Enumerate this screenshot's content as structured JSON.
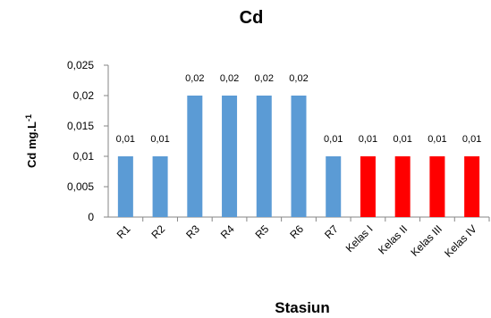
{
  "chart_data": {
    "type": "bar",
    "title": "Cd",
    "y_label": "Cd mg.L",
    "y_label_superscript": "-1",
    "x_label": "Stasiun",
    "categories": [
      "R1",
      "R2",
      "R3",
      "R4",
      "R5",
      "R6",
      "R7",
      "Kelas I",
      "Kelas II",
      "Kelas III",
      "Kelas IV"
    ],
    "values": [
      0.01,
      0.01,
      0.02,
      0.02,
      0.02,
      0.02,
      0.01,
      0.01,
      0.01,
      0.01,
      0.01
    ],
    "value_labels": [
      "0,01",
      "0,01",
      "0,02",
      "0,02",
      "0,02",
      "0,02",
      "0,01",
      "0,01",
      "0,01",
      "0,01",
      "0,01"
    ],
    "colors": [
      "#5b9bd5",
      "#5b9bd5",
      "#5b9bd5",
      "#5b9bd5",
      "#5b9bd5",
      "#5b9bd5",
      "#5b9bd5",
      "#ff0000",
      "#ff0000",
      "#ff0000",
      "#ff0000"
    ],
    "ylim": [
      0,
      0.025
    ],
    "yticks": [
      0,
      {
        "value": 0.005,
        "label": "0,005"
      },
      {
        "value": 0.01,
        "label": "0,01"
      },
      {
        "value": 0.015,
        "label": "0,015"
      },
      {
        "value": 0.02,
        "label": "0,02"
      },
      {
        "value": 0.025,
        "label": "0,025"
      }
    ],
    "grid": false
  }
}
